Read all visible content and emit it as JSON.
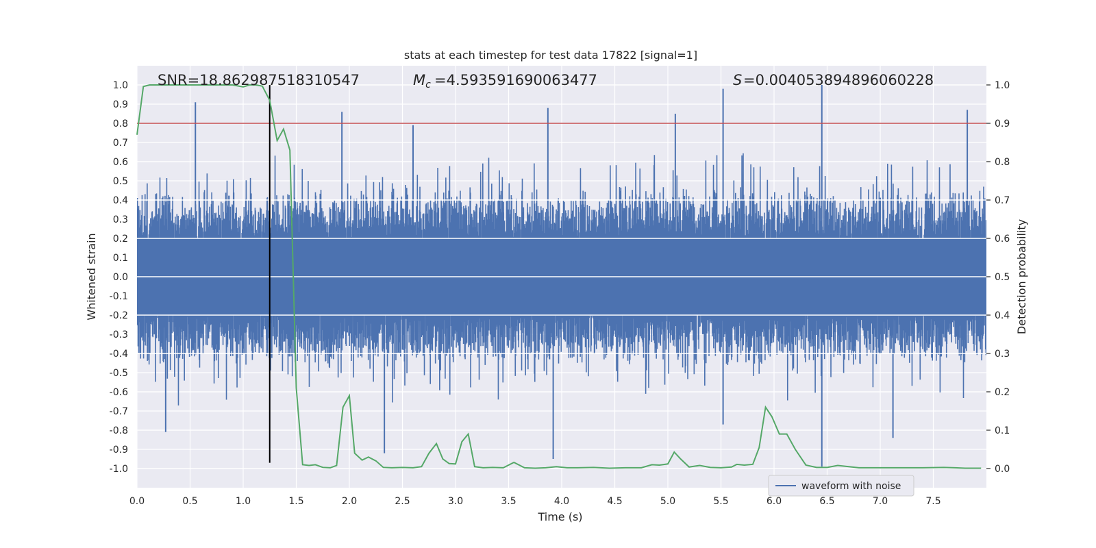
{
  "chart_data": {
    "type": "line",
    "title": "stats at each timestep for test data 17822 [signal=1]",
    "xlabel": "Time (s)",
    "ylabel_left": "Whitened strain",
    "ylabel_right": "Detection probability",
    "xlim": [
      0.0,
      8.0
    ],
    "ylim_left": [
      -1.1,
      1.1
    ],
    "ylim_right": [
      -0.05,
      1.05
    ],
    "x_ticks": [
      "0.0",
      "0.5",
      "1.0",
      "1.5",
      "2.0",
      "2.5",
      "3.0",
      "3.5",
      "4.0",
      "4.5",
      "5.0",
      "5.5",
      "6.0",
      "6.5",
      "7.0",
      "7.5"
    ],
    "y_ticks_left": [
      "-1.0",
      "-0.9",
      "-0.8",
      "-0.7",
      "-0.6",
      "-0.5",
      "-0.4",
      "-0.3",
      "-0.2",
      "-0.1",
      "0.0",
      "0.1",
      "0.2",
      "0.3",
      "0.4",
      "0.5",
      "0.6",
      "0.7",
      "0.8",
      "0.9",
      "1.0"
    ],
    "y_ticks_right": [
      "0.0",
      "0.1",
      "0.2",
      "0.3",
      "0.4",
      "0.5",
      "0.6",
      "0.7",
      "0.8",
      "0.9",
      "1.0"
    ],
    "annotations": {
      "snr": "SNR=18.862987518310547",
      "mc": "=4.593591690063477",
      "s": "=0.004053894896060228"
    },
    "threshold": 0.9,
    "merger_time": 1.25,
    "colors": {
      "waveform": "#4c72b0",
      "probability": "#55a868",
      "threshold": "#c44e52",
      "merger": "#000000",
      "background": "#eaeaf2",
      "grid": "#ffffff"
    },
    "series": [
      {
        "name": "waveform with noise",
        "role": "waveform",
        "note": "dense noisy strain, approx symmetric around 0, typical amplitude +/-0.45, spikes up to ~1.0",
        "peaks": [
          {
            "t": 0.55,
            "v": 0.91
          },
          {
            "t": 1.93,
            "v": 0.86
          },
          {
            "t": 2.6,
            "v": 0.79
          },
          {
            "t": 3.87,
            "v": 0.88
          },
          {
            "t": 5.07,
            "v": 0.85
          },
          {
            "t": 5.52,
            "v": 0.98
          },
          {
            "t": 6.45,
            "v": 1.0
          },
          {
            "t": 7.82,
            "v": 0.87
          },
          {
            "t": 0.27,
            "v": -0.81
          },
          {
            "t": 2.33,
            "v": -0.92
          },
          {
            "t": 3.92,
            "v": -0.95
          },
          {
            "t": 6.45,
            "v": -0.99
          },
          {
            "t": 7.12,
            "v": -0.84
          },
          {
            "t": 5.52,
            "v": -0.77
          }
        ]
      },
      {
        "name": "detection probability",
        "role": "probability",
        "x": [
          0.0,
          0.06,
          0.12,
          0.2,
          0.3,
          0.4,
          0.5,
          0.6,
          0.7,
          0.8,
          0.9,
          1.0,
          1.06,
          1.12,
          1.18,
          1.25,
          1.32,
          1.38,
          1.44,
          1.5,
          1.56,
          1.62,
          1.68,
          1.75,
          1.82,
          1.88,
          1.94,
          2.0,
          2.05,
          2.12,
          2.18,
          2.25,
          2.32,
          2.4,
          2.5,
          2.6,
          2.68,
          2.75,
          2.82,
          2.88,
          2.94,
          3.0,
          3.06,
          3.12,
          3.18,
          3.26,
          3.35,
          3.45,
          3.55,
          3.65,
          3.75,
          3.85,
          3.95,
          4.05,
          4.15,
          4.3,
          4.45,
          4.6,
          4.75,
          4.85,
          4.92,
          5.0,
          5.06,
          5.12,
          5.2,
          5.3,
          5.4,
          5.5,
          5.6,
          5.65,
          5.72,
          5.8,
          5.86,
          5.92,
          5.98,
          6.05,
          6.12,
          6.2,
          6.3,
          6.4,
          6.5,
          6.6,
          6.8,
          7.0,
          7.2,
          7.4,
          7.6,
          7.8,
          7.95
        ],
        "values": [
          0.87,
          0.996,
          1.0,
          1.0,
          1.0,
          1.0,
          1.0,
          1.0,
          1.0,
          1.0,
          1.0,
          0.995,
          1.0,
          1.0,
          0.997,
          0.96,
          0.855,
          0.885,
          0.83,
          0.21,
          0.01,
          0.008,
          0.01,
          0.003,
          0.002,
          0.008,
          0.16,
          0.19,
          0.04,
          0.022,
          0.03,
          0.02,
          0.003,
          0.002,
          0.003,
          0.002,
          0.005,
          0.04,
          0.065,
          0.025,
          0.013,
          0.012,
          0.07,
          0.09,
          0.005,
          0.002,
          0.003,
          0.002,
          0.016,
          0.002,
          0.001,
          0.002,
          0.005,
          0.002,
          0.002,
          0.003,
          0.001,
          0.002,
          0.002,
          0.01,
          0.009,
          0.012,
          0.043,
          0.025,
          0.004,
          0.008,
          0.003,
          0.002,
          0.004,
          0.011,
          0.009,
          0.011,
          0.055,
          0.16,
          0.135,
          0.09,
          0.09,
          0.05,
          0.009,
          0.003,
          0.003,
          0.008,
          0.002,
          0.002,
          0.002,
          0.002,
          0.003,
          0.001,
          0.001
        ]
      }
    ],
    "legend": {
      "label": "waveform with noise",
      "location": "lower-right"
    }
  }
}
